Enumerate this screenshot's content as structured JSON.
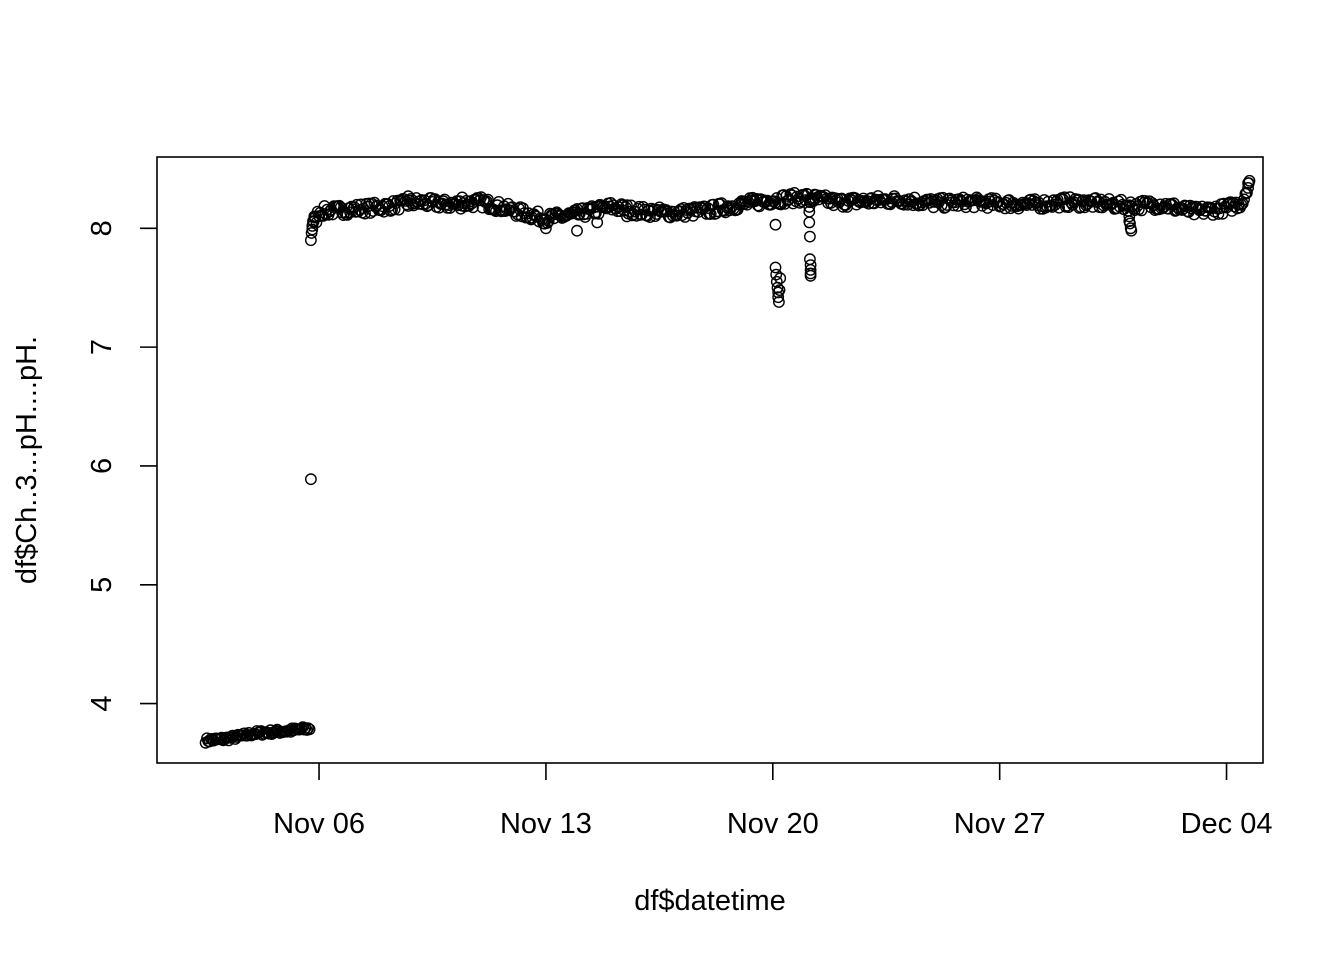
{
  "chart_data": {
    "type": "scatter",
    "title": "",
    "xlabel": "df$datetime",
    "ylabel": "df$Ch..3...pH....pH.",
    "x_type": "date",
    "xlim": [
      "2024-11-01T00:00",
      "2024-12-05T03:00"
    ],
    "ylim": [
      3.5,
      8.6
    ],
    "x_ticks": [
      {
        "value": "2024-11-06",
        "label": "Nov 06"
      },
      {
        "value": "2024-11-13",
        "label": "Nov 13"
      },
      {
        "value": "2024-11-20",
        "label": "Nov 20"
      },
      {
        "value": "2024-11-27",
        "label": "Nov 27"
      },
      {
        "value": "2024-12-04",
        "label": "Dec 04"
      }
    ],
    "y_ticks": [
      4,
      5,
      6,
      7,
      8
    ],
    "grid": false,
    "legend": "none",
    "marker": "open-circle",
    "series": [
      {
        "trend": [
          [
            "2024-11-02T12:00",
            3.69
          ],
          [
            "2024-11-03T00:00",
            3.7
          ],
          [
            "2024-11-03T12:00",
            3.72
          ],
          [
            "2024-11-04T00:00",
            3.75
          ],
          [
            "2024-11-04T12:00",
            3.76
          ],
          [
            "2024-11-05T00:00",
            3.77
          ],
          [
            "2024-11-05T17:00",
            3.79
          ],
          [
            "2024-11-05T19:00",
            8.0
          ],
          [
            "2024-11-06T00:00",
            8.14
          ],
          [
            "2024-11-07T00:00",
            8.16
          ],
          [
            "2024-11-08T00:00",
            8.18
          ],
          [
            "2024-11-09T00:00",
            8.22
          ],
          [
            "2024-11-10T00:00",
            8.2
          ],
          [
            "2024-11-11T00:00",
            8.22
          ],
          [
            "2024-11-12T00:00",
            8.15
          ],
          [
            "2024-11-13T00:00",
            8.08
          ],
          [
            "2024-11-14T00:00",
            8.12
          ],
          [
            "2024-11-15T00:00",
            8.18
          ],
          [
            "2024-11-16T00:00",
            8.14
          ],
          [
            "2024-11-17T00:00",
            8.13
          ],
          [
            "2024-11-18T00:00",
            8.15
          ],
          [
            "2024-11-19T00:00",
            8.2
          ],
          [
            "2024-11-20T00:00",
            8.24
          ],
          [
            "2024-11-21T00:00",
            8.26
          ],
          [
            "2024-11-22T00:00",
            8.22
          ],
          [
            "2024-11-23T00:00",
            8.23
          ],
          [
            "2024-11-24T00:00",
            8.24
          ],
          [
            "2024-11-25T00:00",
            8.21
          ],
          [
            "2024-11-26T00:00",
            8.22
          ],
          [
            "2024-11-27T00:00",
            8.21
          ],
          [
            "2024-11-28T00:00",
            8.2
          ],
          [
            "2024-11-29T00:00",
            8.22
          ],
          [
            "2024-11-30T00:00",
            8.21
          ],
          [
            "2024-12-01T00:00",
            8.19
          ],
          [
            "2024-12-02T00:00",
            8.2
          ],
          [
            "2024-12-03T00:00",
            8.14
          ],
          [
            "2024-12-04T00:00",
            8.17
          ],
          [
            "2024-12-04T12:00",
            8.22
          ],
          [
            "2024-12-04T16:00",
            8.38
          ]
        ],
        "points": [
          [
            "2024-11-05T18:00",
            7.9
          ],
          [
            "2024-11-05T18:30",
            7.96
          ],
          [
            "2024-11-05T19:00",
            8.02
          ],
          [
            "2024-11-05T19:30",
            8.06
          ],
          [
            "2024-11-05T20:30",
            8.1
          ],
          [
            "2024-11-13T00:00",
            8.0
          ],
          [
            "2024-11-13T23:00",
            7.98
          ],
          [
            "2024-11-14T14:00",
            8.05
          ],
          [
            "2024-11-15T12:00",
            8.1
          ],
          [
            "2024-11-20T02:00",
            8.03
          ],
          [
            "2024-11-20T02:00",
            7.67
          ],
          [
            "2024-11-20T02:30",
            7.61
          ],
          [
            "2024-11-20T03:00",
            7.55
          ],
          [
            "2024-11-20T03:30",
            7.5
          ],
          [
            "2024-11-20T04:00",
            7.46
          ],
          [
            "2024-11-20T04:00",
            7.42
          ],
          [
            "2024-11-20T04:30",
            7.38
          ],
          [
            "2024-11-20T05:00",
            7.48
          ],
          [
            "2024-11-20T05:30",
            7.58
          ],
          [
            "2024-11-21T03:00",
            8.18
          ],
          [
            "2024-11-21T03:00",
            8.14
          ],
          [
            "2024-11-21T03:00",
            8.05
          ],
          [
            "2024-11-21T03:30",
            7.93
          ],
          [
            "2024-11-21T03:30",
            7.74
          ],
          [
            "2024-11-21T04:00",
            7.69
          ],
          [
            "2024-11-21T04:00",
            7.65
          ],
          [
            "2024-11-21T04:00",
            7.62
          ],
          [
            "2024-11-21T04:00",
            7.6
          ],
          [
            "2024-11-21T03:30",
            8.22
          ],
          [
            "2024-12-01T00:00",
            8.1
          ],
          [
            "2024-12-01T00:30",
            8.04
          ],
          [
            "2024-12-01T01:00",
            8.0
          ],
          [
            "2024-12-01T01:30",
            7.98
          ],
          [
            "2024-12-01T00:00",
            8.06
          ],
          [
            "2024-12-04T15:00",
            8.3
          ],
          [
            "2024-12-04T16:00",
            8.34
          ],
          [
            "2024-12-04T16:30",
            8.38
          ],
          [
            "2024-12-04T17:00",
            8.4
          ],
          [
            "2024-11-08T18:00",
            8.27
          ],
          [
            "2024-11-10T10:00",
            8.26
          ]
        ]
      }
    ]
  }
}
